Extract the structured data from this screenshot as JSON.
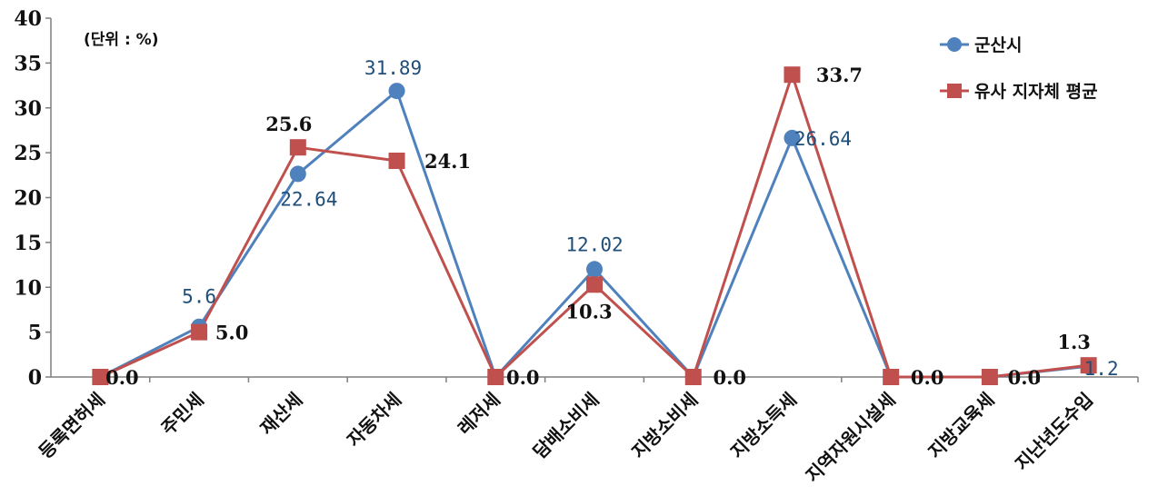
{
  "chart_data": {
    "type": "line",
    "unit_label": "(단위 : %)",
    "ylim": [
      0,
      40
    ],
    "yticks": [
      "0",
      "5",
      "10",
      "15",
      "20",
      "25",
      "30",
      "35",
      "40"
    ],
    "categories": [
      "등록면허세",
      "주민세",
      "재산세",
      "자동차세",
      "레저세",
      "담배소비세",
      "지방소비세",
      "지방소득세",
      "지역자원시설세",
      "지방교육세",
      "지난년도수입"
    ],
    "series": [
      {
        "name": "군산시",
        "color": "#4f81bd",
        "marker": "circle",
        "values": [
          0,
          5.6,
          22.64,
          31.89,
          0,
          12.02,
          0,
          26.64,
          0,
          0,
          1.2
        ],
        "labels": [
          "",
          "5.6",
          "22.64",
          "31.89",
          "",
          "12.02",
          "",
          "26.64",
          "",
          "",
          "1.2"
        ]
      },
      {
        "name": "유사 지자체 평균",
        "color": "#c0504d",
        "marker": "square",
        "values": [
          0,
          5.0,
          25.6,
          24.1,
          0,
          10.3,
          0,
          33.7,
          0,
          0,
          1.3
        ],
        "labels": [
          "0.0",
          "5.0",
          "25.6",
          "24.1",
          "0.0",
          "10.3",
          "0.0",
          "33.7",
          "0.0",
          "0.0",
          "1.3"
        ]
      }
    ],
    "legend_position": "top-right",
    "grid": false
  }
}
